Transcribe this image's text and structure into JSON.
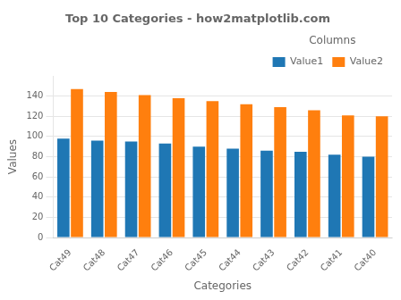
{
  "chart_data": {
    "type": "bar",
    "title": "Top 10 Categories - how2matplotlib.com",
    "xlabel": "Categories",
    "ylabel": "Values",
    "legend_title": "Columns",
    "categories": [
      "Cat49",
      "Cat48",
      "Cat47",
      "Cat46",
      "Cat45",
      "Cat44",
      "Cat43",
      "Cat42",
      "Cat41",
      "Cat40"
    ],
    "series": [
      {
        "name": "Value1",
        "color": "#1f77b4",
        "values": [
          98,
          96,
          95,
          93,
          90,
          88,
          86,
          85,
          82,
          80
        ]
      },
      {
        "name": "Value2",
        "color": "#ff7f0e",
        "values": [
          147,
          144,
          141,
          138,
          135,
          132,
          129,
          126,
          121,
          120
        ]
      }
    ],
    "ylim": [
      0,
      160
    ],
    "yticks": [
      0,
      20,
      40,
      60,
      80,
      100,
      120,
      140
    ],
    "grid": true,
    "legend": "upper right"
  }
}
